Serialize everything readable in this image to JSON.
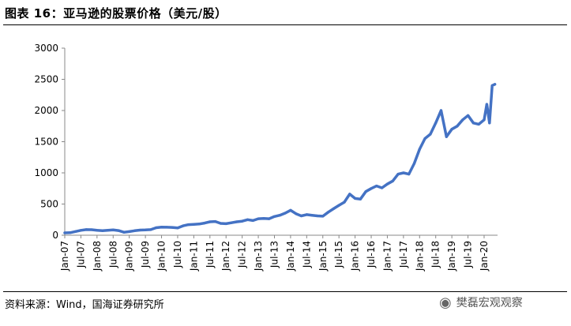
{
  "header": {
    "title": "图表 16：亚马逊的股票价格（美元/股）"
  },
  "footer": {
    "source": "资料来源：Wind，国海证券研究所",
    "watermark": "樊磊宏观观察",
    "watermark_icon": "wechat-icon"
  },
  "colors": {
    "series": "#4472C4",
    "axis": "#888888"
  },
  "chart_data": {
    "type": "line",
    "title": "",
    "xlabel": "",
    "ylabel": "",
    "ylim": [
      0,
      3000
    ],
    "yticks": [
      0,
      500,
      1000,
      1500,
      2000,
      2500,
      3000
    ],
    "xtick_labels": [
      "Jan-07",
      "Jul-07",
      "Jan-08",
      "Jul-08",
      "Jan-09",
      "Jul-09",
      "Jan-10",
      "Jul-10",
      "Jan-11",
      "Jul-11",
      "Jan-12",
      "Jul-12",
      "Jan-13",
      "Jul-13",
      "Jan-14",
      "Jul-14",
      "Jan-15",
      "Jul-15",
      "Jan-16",
      "Jul-16",
      "Jan-17",
      "Jul-17",
      "Jan-18",
      "Jul-18",
      "Jan-19",
      "Jul-19",
      "Jan-20"
    ],
    "grid": false,
    "legend": "none",
    "series": [
      {
        "x": [
          "2007-01",
          "2007-03",
          "2007-05",
          "2007-07",
          "2007-09",
          "2007-11",
          "2008-01",
          "2008-03",
          "2008-05",
          "2008-07",
          "2008-09",
          "2008-11",
          "2009-01",
          "2009-03",
          "2009-05",
          "2009-07",
          "2009-09",
          "2009-11",
          "2010-01",
          "2010-03",
          "2010-05",
          "2010-07",
          "2010-09",
          "2010-11",
          "2011-01",
          "2011-03",
          "2011-05",
          "2011-07",
          "2011-09",
          "2011-11",
          "2012-01",
          "2012-03",
          "2012-05",
          "2012-07",
          "2012-09",
          "2012-11",
          "2013-01",
          "2013-03",
          "2013-05",
          "2013-07",
          "2013-09",
          "2013-11",
          "2014-01",
          "2014-03",
          "2014-05",
          "2014-07",
          "2014-09",
          "2014-11",
          "2015-01",
          "2015-03",
          "2015-05",
          "2015-07",
          "2015-09",
          "2015-11",
          "2016-01",
          "2016-03",
          "2016-05",
          "2016-07",
          "2016-09",
          "2016-11",
          "2017-01",
          "2017-03",
          "2017-05",
          "2017-07",
          "2017-09",
          "2017-11",
          "2018-01",
          "2018-03",
          "2018-05",
          "2018-07",
          "2018-09",
          "2018-11",
          "2019-01",
          "2019-03",
          "2019-05",
          "2019-07",
          "2019-09",
          "2019-11",
          "2020-01",
          "2020-02",
          "2020-03",
          "2020-04",
          "2020-05"
        ],
        "y": [
          38,
          40,
          60,
          78,
          90,
          88,
          80,
          73,
          78,
          85,
          75,
          48,
          58,
          72,
          82,
          85,
          90,
          120,
          130,
          128,
          125,
          118,
          150,
          170,
          175,
          180,
          195,
          215,
          220,
          190,
          185,
          200,
          215,
          225,
          250,
          235,
          265,
          270,
          265,
          300,
          320,
          355,
          400,
          345,
          310,
          330,
          320,
          310,
          305,
          370,
          425,
          480,
          530,
          660,
          590,
          580,
          700,
          750,
          790,
          760,
          820,
          870,
          980,
          1000,
          980,
          1150,
          1380,
          1550,
          1620,
          1800,
          2000,
          1580,
          1700,
          1750,
          1850,
          1920,
          1800,
          1780,
          1850,
          2100,
          1800,
          2400,
          2420
        ]
      }
    ]
  }
}
